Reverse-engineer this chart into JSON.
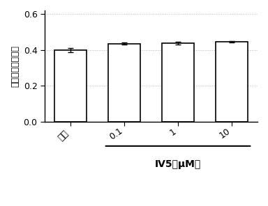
{
  "categories": [
    "正常",
    "0.1",
    "1",
    "10"
  ],
  "values": [
    0.4,
    0.435,
    0.438,
    0.445
  ],
  "errors": [
    0.012,
    0.007,
    0.007,
    0.005
  ],
  "bar_color": "#ffffff",
  "bar_edgecolor": "#000000",
  "bar_width": 0.6,
  "ylim": [
    0.0,
    0.62
  ],
  "yticks": [
    0.0,
    0.2,
    0.4,
    0.6
  ],
  "ylabel": "乳酸脱氢酶漏出率",
  "xlabel_main": "IV5（μM）",
  "title": "",
  "capsize": 3,
  "figsize": [
    3.84,
    2.96
  ],
  "dpi": 100,
  "bg_color": "#ffffff",
  "grid_color": "#aaaaaa",
  "grid_style": ":"
}
